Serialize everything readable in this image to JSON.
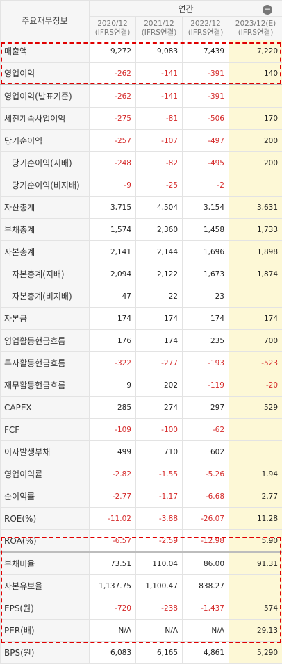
{
  "header": {
    "label": "주요재무정보",
    "period_group": "연간",
    "collapse_icon": "minus-circle-icon",
    "columns": [
      {
        "year": "2020/12",
        "basis": "(IFRS연결)"
      },
      {
        "year": "2021/12",
        "basis": "(IFRS연결)"
      },
      {
        "year": "2022/12",
        "basis": "(IFRS연결)"
      },
      {
        "year": "2023/12(E)",
        "basis": "(IFRS연결)"
      }
    ]
  },
  "colors": {
    "negative": "#d52b2b",
    "estimate_bg": "#fdf8d6",
    "highlight_outline": "#e00000"
  },
  "rows": [
    {
      "label": "매출액",
      "values": [
        "9,272",
        "9,083",
        "7,439",
        "7,220"
      ],
      "neg": [
        false,
        false,
        false,
        false
      ]
    },
    {
      "label": "영업이익",
      "values": [
        "-262",
        "-141",
        "-391",
        "140"
      ],
      "neg": [
        true,
        true,
        true,
        false
      ]
    },
    {
      "label": "영업이익(발표기준)",
      "values": [
        "-262",
        "-141",
        "-391",
        ""
      ],
      "neg": [
        true,
        true,
        true,
        false
      ]
    },
    {
      "label": "세전계속사업이익",
      "values": [
        "-275",
        "-81",
        "-506",
        "170"
      ],
      "neg": [
        true,
        true,
        true,
        false
      ]
    },
    {
      "label": "당기순이익",
      "values": [
        "-257",
        "-107",
        "-497",
        "200"
      ],
      "neg": [
        true,
        true,
        true,
        false
      ]
    },
    {
      "label": "당기순이익(지배)",
      "values": [
        "-248",
        "-82",
        "-495",
        "200"
      ],
      "neg": [
        true,
        true,
        true,
        false
      ]
    },
    {
      "label": "당기순이익(비지배)",
      "values": [
        "-9",
        "-25",
        "-2",
        ""
      ],
      "neg": [
        true,
        true,
        true,
        false
      ]
    },
    {
      "label": "자산총계",
      "values": [
        "3,715",
        "4,504",
        "3,154",
        "3,631"
      ],
      "neg": [
        false,
        false,
        false,
        false
      ]
    },
    {
      "label": "부채총계",
      "values": [
        "1,574",
        "2,360",
        "1,458",
        "1,733"
      ],
      "neg": [
        false,
        false,
        false,
        false
      ]
    },
    {
      "label": "자본총계",
      "values": [
        "2,141",
        "2,144",
        "1,696",
        "1,898"
      ],
      "neg": [
        false,
        false,
        false,
        false
      ]
    },
    {
      "label": "자본총계(지배)",
      "values": [
        "2,094",
        "2,122",
        "1,673",
        "1,874"
      ],
      "neg": [
        false,
        false,
        false,
        false
      ]
    },
    {
      "label": "자본총계(비지배)",
      "values": [
        "47",
        "22",
        "23",
        ""
      ],
      "neg": [
        false,
        false,
        false,
        false
      ]
    },
    {
      "label": "자본금",
      "values": [
        "174",
        "174",
        "174",
        "174"
      ],
      "neg": [
        false,
        false,
        false,
        false
      ]
    },
    {
      "label": "영업활동현금흐름",
      "values": [
        "176",
        "174",
        "235",
        "700"
      ],
      "neg": [
        false,
        false,
        false,
        false
      ]
    },
    {
      "label": "투자활동현금흐름",
      "values": [
        "-322",
        "-277",
        "-193",
        "-523"
      ],
      "neg": [
        true,
        true,
        true,
        true
      ]
    },
    {
      "label": "재무활동현금흐름",
      "values": [
        "9",
        "202",
        "-119",
        "-20"
      ],
      "neg": [
        false,
        false,
        true,
        true
      ]
    },
    {
      "label": "CAPEX",
      "values": [
        "285",
        "274",
        "297",
        "529"
      ],
      "neg": [
        false,
        false,
        false,
        false
      ]
    },
    {
      "label": "FCF",
      "values": [
        "-109",
        "-100",
        "-62",
        ""
      ],
      "neg": [
        true,
        true,
        true,
        false
      ]
    },
    {
      "label": "이자발생부채",
      "values": [
        "499",
        "710",
        "602",
        ""
      ],
      "neg": [
        false,
        false,
        false,
        false
      ]
    },
    {
      "label": "영업이익률",
      "values": [
        "-2.82",
        "-1.55",
        "-5.26",
        "1.94"
      ],
      "neg": [
        true,
        true,
        true,
        false
      ]
    },
    {
      "label": "순이익률",
      "values": [
        "-2.77",
        "-1.17",
        "-6.68",
        "2.77"
      ],
      "neg": [
        true,
        true,
        true,
        false
      ]
    },
    {
      "label": "ROE(%)",
      "values": [
        "-11.02",
        "-3.88",
        "-26.07",
        "11.28"
      ],
      "neg": [
        true,
        true,
        true,
        false
      ]
    },
    {
      "label": "ROA(%)",
      "values": [
        "-6.57",
        "-2.59",
        "-12.98",
        "5.90"
      ],
      "neg": [
        true,
        true,
        true,
        false
      ]
    },
    {
      "label": "부채비율",
      "values": [
        "73.51",
        "110.04",
        "86.00",
        "91.31"
      ],
      "neg": [
        false,
        false,
        false,
        false
      ]
    },
    {
      "label": "자본유보율",
      "values": [
        "1,137.75",
        "1,100.47",
        "838.27",
        ""
      ],
      "neg": [
        false,
        false,
        false,
        false
      ]
    },
    {
      "label": "EPS(원)",
      "values": [
        "-720",
        "-238",
        "-1,437",
        "574"
      ],
      "neg": [
        true,
        true,
        true,
        false
      ]
    },
    {
      "label": "PER(배)",
      "values": [
        "N/A",
        "N/A",
        "N/A",
        "29.13"
      ],
      "neg": [
        false,
        false,
        false,
        false
      ]
    },
    {
      "label": "BPS(원)",
      "values": [
        "6,083",
        "6,165",
        "4,861",
        "5,290"
      ],
      "neg": [
        false,
        false,
        false,
        false
      ]
    }
  ]
}
